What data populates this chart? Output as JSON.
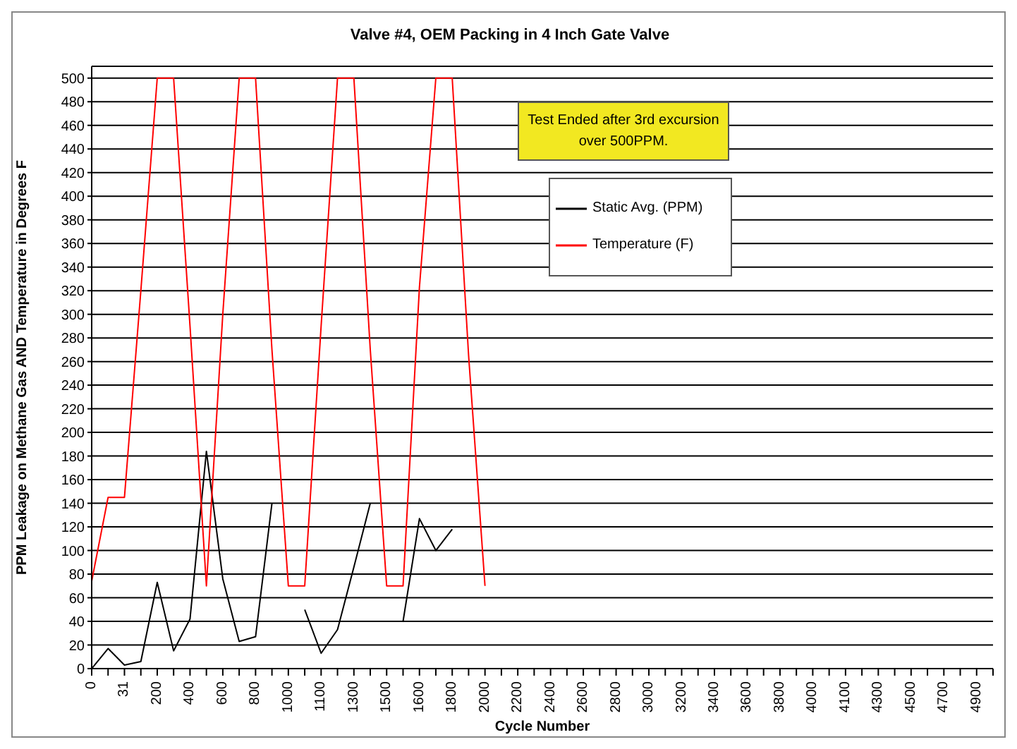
{
  "chart_data": {
    "type": "line",
    "title": "Valve #4, OEM Packing in 4 Inch Gate Valve",
    "xlabel": "Cycle Number",
    "ylabel": "PPM Leakage on Methane Gas AND Temperature in Degrees F",
    "categories": [
      "0",
      null,
      "31",
      null,
      "200",
      null,
      "400",
      null,
      "600",
      null,
      "800",
      null,
      "1000",
      null,
      "1100",
      null,
      "1300",
      null,
      "1500",
      null,
      "1600",
      null,
      "1800",
      null,
      "2000",
      null,
      "2200",
      null,
      "2400",
      null,
      "2600",
      null,
      "2800",
      null,
      "3000",
      null,
      "3200",
      null,
      "3400",
      null,
      "3600",
      null,
      "3800",
      null,
      "4000",
      null,
      "4100",
      null,
      "4300",
      null,
      "4500",
      null,
      "4700",
      null,
      "4900",
      null
    ],
    "series": [
      {
        "name": "Static Avg. (PPM)",
        "color": "#000000",
        "values": [
          0,
          17,
          3,
          6,
          73,
          15,
          42,
          184,
          76,
          23,
          27,
          140,
          null,
          50,
          13,
          33,
          86,
          140,
          null,
          40,
          127,
          100,
          118,
          null,
          null,
          null,
          null,
          null,
          null,
          null,
          null,
          null,
          null,
          null,
          null,
          null,
          null,
          null,
          null,
          null,
          null,
          null,
          null,
          null,
          null,
          null,
          null,
          null,
          null,
          null,
          null,
          null,
          null,
          null,
          null,
          null
        ]
      },
      {
        "name": "Temperature (F)",
        "color": "#ff0000",
        "values": [
          74,
          145,
          145,
          320,
          500,
          500,
          290,
          70,
          300,
          500,
          500,
          270,
          70,
          70,
          290,
          500,
          500,
          270,
          70,
          70,
          323,
          500,
          500,
          265,
          70,
          null,
          null,
          null,
          null,
          null,
          null,
          null,
          null,
          null,
          null,
          null,
          null,
          null,
          null,
          null,
          null,
          null,
          null,
          null,
          null,
          null,
          null,
          null,
          null,
          null,
          null,
          null,
          null,
          null,
          null,
          null
        ]
      }
    ],
    "ylim": [
      0,
      510
    ],
    "yticks": [
      0,
      20,
      40,
      60,
      80,
      100,
      120,
      140,
      160,
      180,
      200,
      220,
      240,
      260,
      280,
      300,
      320,
      340,
      360,
      380,
      400,
      420,
      440,
      460,
      480,
      500
    ],
    "grid": "y",
    "legend": "top right",
    "marker": "none",
    "line_style": "solid",
    "annotations": [
      "Test Ended after 3rd excursion  over 500PPM."
    ]
  }
}
